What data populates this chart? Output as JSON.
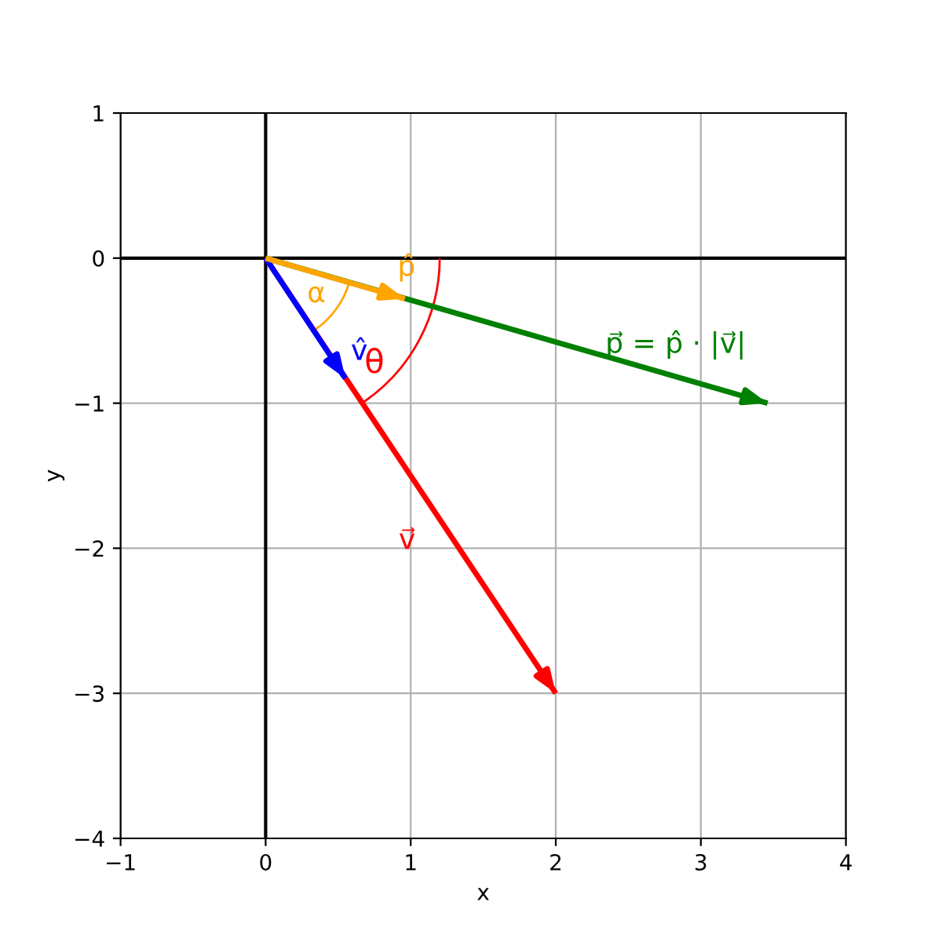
{
  "chart_data": {
    "type": "line",
    "xlabel": "x",
    "ylabel": "y",
    "series": [
      {
        "color": "#000000",
        "x": [
          0,
          0
        ],
        "values": [
          -4,
          1
        ]
      },
      {
        "color": "#000000",
        "x": [
          -1,
          4
        ],
        "values": [
          0,
          0
        ]
      },
      {
        "name": "p⃗ = p̂ · |v⃗|",
        "color": "#008000",
        "x": [
          0,
          3.46
        ],
        "values": [
          0,
          -1.0
        ]
      },
      {
        "name": "v⃗",
        "color": "#ff0000",
        "x": [
          0,
          2
        ],
        "values": [
          0,
          -3
        ]
      },
      {
        "name": "v̂",
        "color": "#0000ff",
        "x": [
          0,
          0.55
        ],
        "values": [
          0,
          -0.83
        ]
      },
      {
        "name": "p̂",
        "color": "#ffa500",
        "x": [
          0,
          0.96
        ],
        "values": [
          0,
          -0.28
        ]
      }
    ],
    "annotations": [
      "α",
      {
        "text": "θ",
        "x": 0.667,
        "y": -1.0
      }
    ],
    "xlim": [
      -1,
      4
    ],
    "ylim": [
      -4,
      1
    ],
    "xticks": [
      -1,
      0,
      1,
      2,
      3,
      4
    ],
    "yticks": [
      -4,
      -3,
      -2,
      -1,
      0,
      1
    ],
    "grid": true,
    "marker": "none",
    "line_style": "solid"
  }
}
